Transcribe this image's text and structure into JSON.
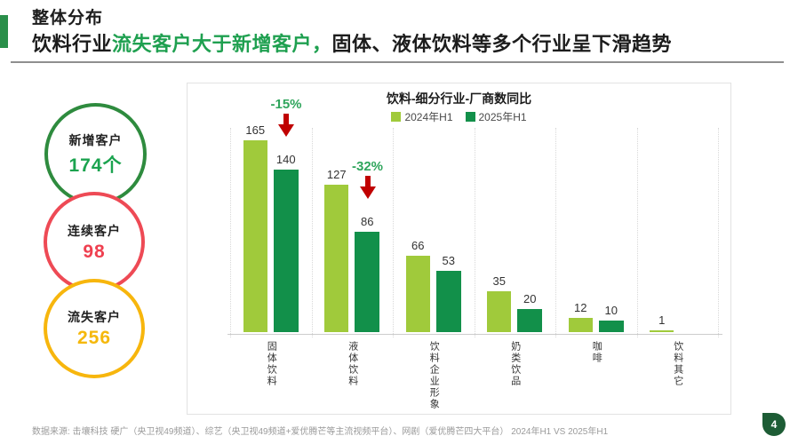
{
  "header": {
    "title": "整体分布",
    "subtitle_prefix": "饮料行业",
    "subtitle_highlight": "流失客户大于新增客户，",
    "subtitle_suffix": "固体、液体饮料等多个行业呈下滑趋势",
    "accent_color": "#2a8f4a",
    "highlight_color": "#1fa050"
  },
  "stats": [
    {
      "label": "新增客户",
      "value": "174个",
      "ring_color": "#2e8b3e",
      "value_color": "#1ba34f"
    },
    {
      "label": "连续客户",
      "value": "98",
      "ring_color": "#ee4a55",
      "value_color": "#ef4050"
    },
    {
      "label": "流失客户",
      "value": "256",
      "ring_color": "#f7b60d",
      "value_color": "#f5b80c"
    }
  ],
  "chart_data": {
    "type": "bar",
    "title": "饮料-细分行业-厂商数同比",
    "categories": [
      "固体饮料",
      "液体饮料",
      "饮料企业形象",
      "奶类饮品",
      "咖啡",
      "饮料其它"
    ],
    "series": [
      {
        "name": "2024年H1",
        "color": "#a0ca3b",
        "values": [
          165,
          127,
          66,
          35,
          12,
          1
        ]
      },
      {
        "name": "2025年H1",
        "color": "#12904a",
        "values": [
          140,
          86,
          53,
          20,
          10,
          null
        ]
      }
    ],
    "annotations": [
      {
        "text": "-15%",
        "category_index": 0
      },
      {
        "text": "-32%",
        "category_index": 1
      }
    ],
    "annotation_color": "#2fa55c",
    "arrow_color": "#c00000",
    "ylim": [
      0,
      177
    ],
    "grid": "vertical-dotted",
    "legend_position": "top"
  },
  "footer": {
    "source": "数据来源: 击壤科技 硬广（央卫视49频道）、综艺（央卫视49频道+爱优腾芒等主流视频平台）、网剧（爱优腾芒四大平台）  2024年H1 VS 2025年H1",
    "page_number": "4"
  }
}
